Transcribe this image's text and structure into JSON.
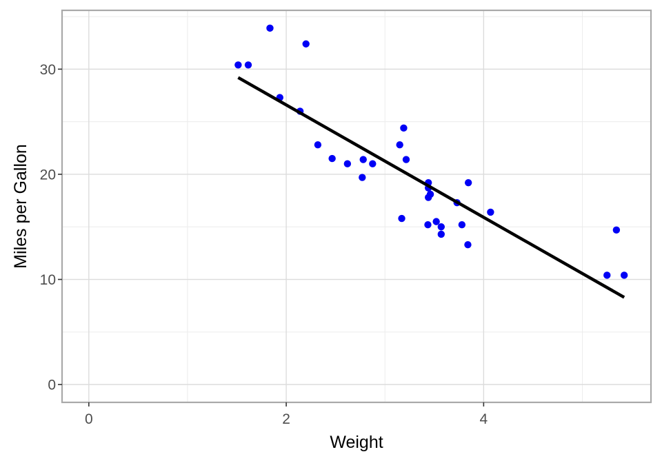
{
  "chart_data": {
    "type": "scatter",
    "title": "",
    "xlabel": "Weight",
    "ylabel": "Miles per Gallon",
    "x_ticks": [
      0,
      2,
      4
    ],
    "y_ticks": [
      0,
      10,
      20,
      30
    ],
    "x_minor_ticks": [
      1,
      3,
      5
    ],
    "y_minor_ticks": [
      5,
      15,
      25,
      35
    ],
    "x_domain": [
      -0.2712,
      5.6952
    ],
    "y_domain": [
      -1.695,
      35.595
    ],
    "grid": true,
    "legend_position": "none",
    "points": [
      {
        "x": 2.62,
        "y": 21.0
      },
      {
        "x": 2.875,
        "y": 21.0
      },
      {
        "x": 2.32,
        "y": 22.8
      },
      {
        "x": 3.215,
        "y": 21.4
      },
      {
        "x": 3.44,
        "y": 18.7
      },
      {
        "x": 3.46,
        "y": 18.1
      },
      {
        "x": 3.57,
        "y": 14.3
      },
      {
        "x": 3.19,
        "y": 24.4
      },
      {
        "x": 3.15,
        "y": 22.8
      },
      {
        "x": 3.44,
        "y": 19.2
      },
      {
        "x": 3.44,
        "y": 17.8
      },
      {
        "x": 4.07,
        "y": 16.4
      },
      {
        "x": 3.73,
        "y": 17.3
      },
      {
        "x": 3.78,
        "y": 15.2
      },
      {
        "x": 5.25,
        "y": 10.4
      },
      {
        "x": 5.424,
        "y": 10.4
      },
      {
        "x": 5.345,
        "y": 14.7
      },
      {
        "x": 2.2,
        "y": 32.4
      },
      {
        "x": 1.615,
        "y": 30.4
      },
      {
        "x": 1.835,
        "y": 33.9
      },
      {
        "x": 2.465,
        "y": 21.5
      },
      {
        "x": 3.52,
        "y": 15.5
      },
      {
        "x": 3.435,
        "y": 15.2
      },
      {
        "x": 3.84,
        "y": 13.3
      },
      {
        "x": 3.845,
        "y": 19.2
      },
      {
        "x": 1.935,
        "y": 27.3
      },
      {
        "x": 2.14,
        "y": 26.0
      },
      {
        "x": 1.513,
        "y": 30.4
      },
      {
        "x": 3.17,
        "y": 15.8
      },
      {
        "x": 2.77,
        "y": 19.7
      },
      {
        "x": 3.57,
        "y": 15.0
      },
      {
        "x": 2.78,
        "y": 21.4
      }
    ],
    "regression_line": {
      "x1": 1.513,
      "y1": 29.199,
      "x2": 5.424,
      "y2": 8.297
    },
    "point_radius": 5.2,
    "line_width": 4.5,
    "colors": {
      "point": "#0000F5",
      "regression_line": "#000000",
      "grid_major": "#DCDCDC",
      "grid_minor": "#ECECEC",
      "panel_border": "#A9A9A9",
      "panel_background": "#FFFFFF",
      "tick_mark": "#333333",
      "tick_label": "#4D4D4D",
      "axis_title": "#000000",
      "background": "#FFFFFF"
    }
  }
}
